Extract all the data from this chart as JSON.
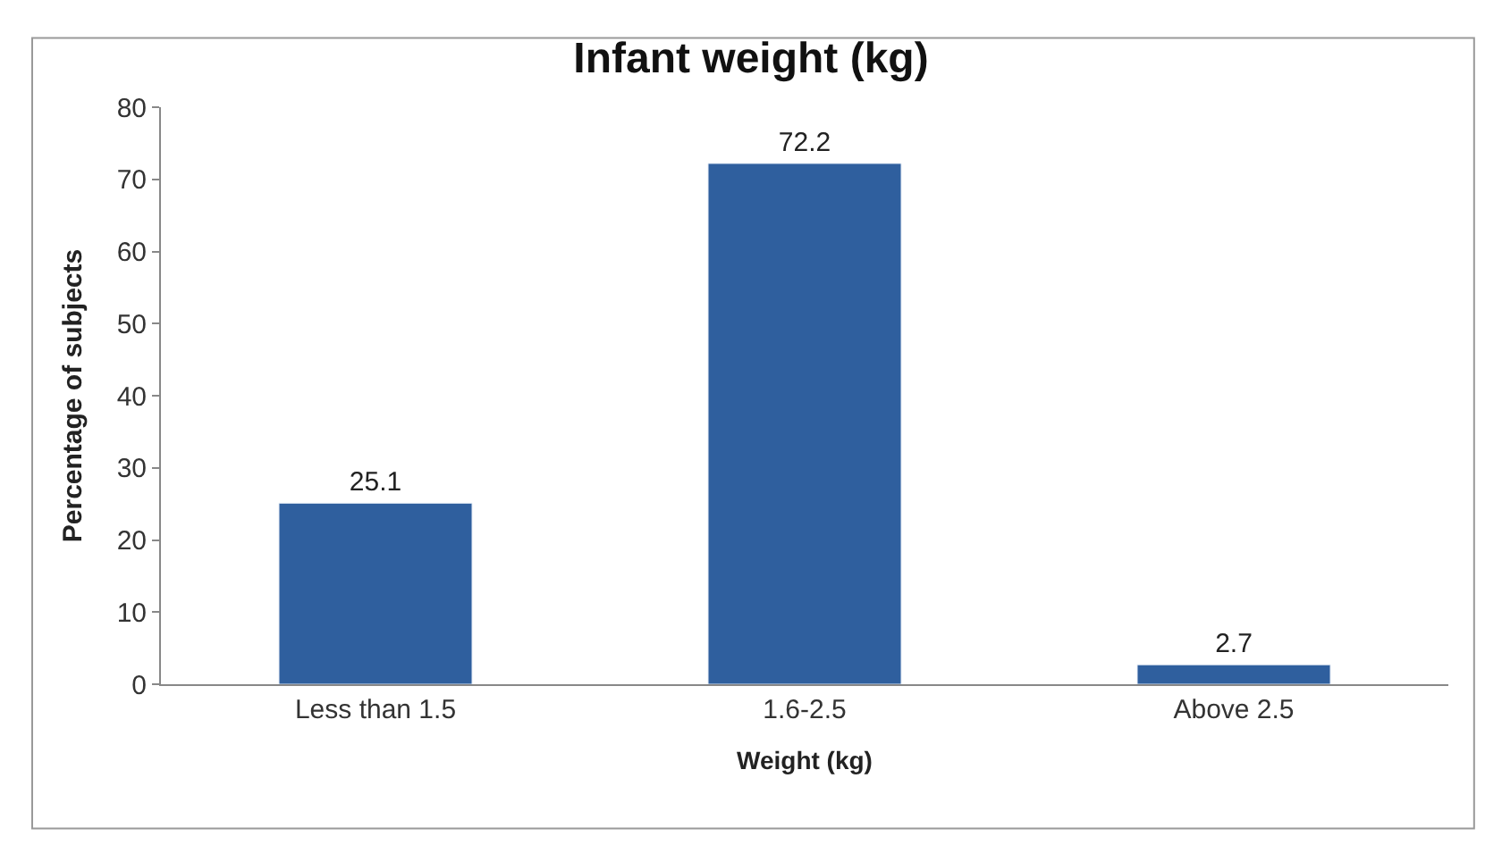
{
  "chart_data": {
    "type": "bar",
    "title": "Infant weight (kg)",
    "xlabel": "Weight (kg)",
    "ylabel": "Percentage of subjects",
    "categories": [
      "Less than 1.5",
      "1.6-2.5",
      "Above 2.5"
    ],
    "values": [
      25.1,
      72.2,
      2.7
    ],
    "color": "#2f5f9e",
    "data_labels": true,
    "ylim": [
      0,
      80
    ],
    "yticks": [
      0,
      10,
      20,
      30,
      40,
      50,
      60,
      70,
      80
    ]
  }
}
